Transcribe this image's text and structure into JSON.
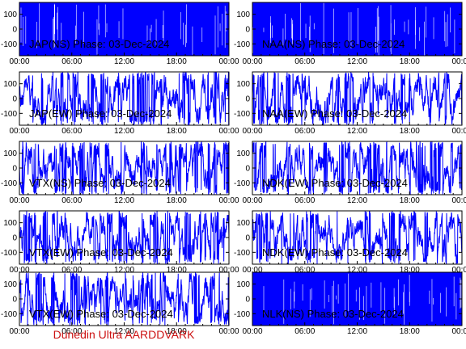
{
  "footer": "Dunedin Ultra AARDDVARK",
  "colors": {
    "signal": "#0000ff",
    "frame": "#000000",
    "background": "#ffffff",
    "footer": "#cc1111"
  },
  "chart_data": [
    {
      "type": "line",
      "title": "JAP(NS) Phase: 03-Dec-2024",
      "x_ticks": [
        "00:00",
        "06:00",
        "12:00",
        "18:00",
        "00:00"
      ],
      "y_ticks": [
        100,
        0,
        -100
      ],
      "ylim": [
        -180,
        180
      ],
      "pattern": "saturated"
    },
    {
      "type": "line",
      "title": "NAA(NS) Phase: 03-Dec-2024",
      "x_ticks": [
        "00:00",
        "06:00",
        "12:00",
        "18:00",
        "00:00"
      ],
      "y_ticks": [
        100,
        0,
        -100
      ],
      "ylim": [
        -180,
        180
      ],
      "pattern": "saturated"
    },
    {
      "type": "line",
      "title": "JAP(EW) Phase: 03-Dec-2024",
      "x_ticks": [
        "00:00",
        "06:00",
        "12:00",
        "18:00",
        "00:00"
      ],
      "y_ticks": [
        100,
        0,
        -100
      ],
      "ylim": [
        -180,
        180
      ],
      "pattern": "wrapping"
    },
    {
      "type": "line",
      "title": "NAA(EW) Phase: 03-Dec-2024",
      "x_ticks": [
        "00:00",
        "06:00",
        "12:00",
        "18:00",
        "00:00"
      ],
      "y_ticks": [
        100,
        0,
        -100
      ],
      "ylim": [
        -180,
        180
      ],
      "pattern": "wrapping"
    },
    {
      "type": "line",
      "title": "VTX(NS) Phase: 03-Dec-2024",
      "x_ticks": [
        "00:00",
        "06:00",
        "12:00",
        "18:00",
        "00:00"
      ],
      "y_ticks": [
        100,
        0,
        -100
      ],
      "ylim": [
        -180,
        180
      ],
      "pattern": "wrapping"
    },
    {
      "type": "line",
      "title": "NDK(EW) Phase: 03-Dec-2024",
      "x_ticks": [
        "00:00",
        "06:00",
        "12:00",
        "18:00",
        "00:00"
      ],
      "y_ticks": [
        100,
        0,
        -100
      ],
      "ylim": [
        -180,
        180
      ],
      "pattern": "wrapping"
    },
    {
      "type": "line",
      "title": "VTX(EW) Phase: 03-Dec-2024",
      "x_ticks": [
        "00:00",
        "06:00",
        "12:00",
        "18:00",
        "00:00"
      ],
      "y_ticks": [
        100,
        0,
        -100
      ],
      "ylim": [
        -180,
        180
      ],
      "pattern": "wrapping"
    },
    {
      "type": "line",
      "title": "NDK(EW) Phase: 03-Dec-2024",
      "x_ticks": [
        "00:00",
        "06:00",
        "12:00",
        "18:00",
        "00:00"
      ],
      "y_ticks": [
        100,
        0,
        -100
      ],
      "ylim": [
        -180,
        180
      ],
      "pattern": "wrapping"
    },
    {
      "type": "line",
      "title": "VTX(EW) Phase: 03-Dec-2024",
      "x_ticks": [
        "00:00",
        "06:00",
        "12:00",
        "18:00",
        "00:00"
      ],
      "y_ticks": [
        100,
        0,
        -100
      ],
      "ylim": [
        -180,
        180
      ],
      "pattern": "wrapping"
    },
    {
      "type": "line",
      "title": "NLK(NS) Phase: 03-Dec-2024",
      "x_ticks": [
        "00:00",
        "06:00",
        "12:00",
        "18:00",
        "00:00"
      ],
      "y_ticks": [
        100,
        0,
        -100
      ],
      "ylim": [
        -180,
        180
      ],
      "pattern": "saturated"
    }
  ]
}
